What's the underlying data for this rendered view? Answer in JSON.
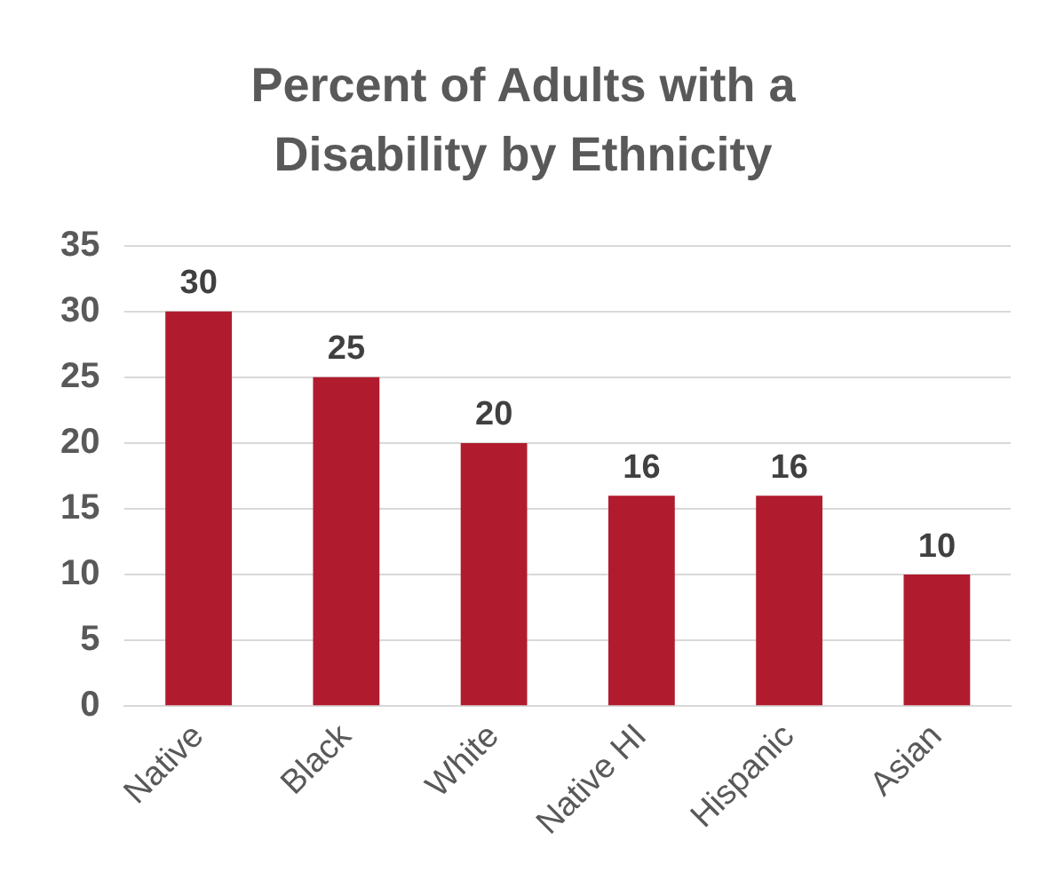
{
  "chart_data": {
    "type": "bar",
    "title": "Percent of Adults with a Disability by Ethnicity",
    "categories": [
      "Native",
      "Black",
      "White",
      "Native HI",
      "Hispanic",
      "Asian"
    ],
    "values": [
      30,
      25,
      20,
      16,
      16,
      10
    ],
    "color": "#b01c2e",
    "ylim": [
      0,
      35
    ],
    "yticks": [
      0,
      5,
      10,
      15,
      20,
      25,
      30,
      35
    ],
    "grid": "y",
    "data_labels": true
  }
}
